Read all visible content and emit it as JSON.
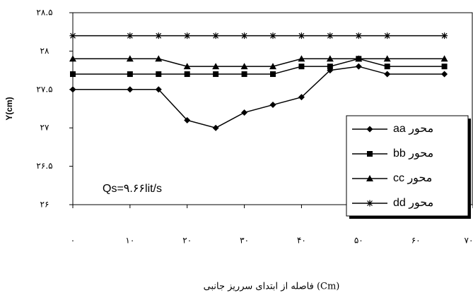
{
  "chart_data": {
    "type": "line",
    "y_label": "Y(cm)",
    "x_label": "فاصله از ابتدای سرریز جانبی (Cm)",
    "annotation": "Qs=۹.۶۶lit/s",
    "x": [
      0,
      10,
      15,
      20,
      25,
      30,
      35,
      40,
      45,
      50,
      55,
      65
    ],
    "series": [
      {
        "name": "محور aa",
        "color": "#000000",
        "marker": "diamond",
        "values": [
          27.5,
          27.5,
          27.5,
          27.1,
          27.0,
          27.2,
          27.3,
          27.4,
          27.75,
          27.8,
          27.7,
          27.7
        ]
      },
      {
        "name": "محور bb",
        "color": "#000000",
        "marker": "square",
        "values": [
          27.7,
          27.7,
          27.7,
          27.7,
          27.7,
          27.7,
          27.7,
          27.8,
          27.8,
          27.9,
          27.8,
          27.8
        ]
      },
      {
        "name": "محور cc",
        "color": "#000000",
        "marker": "triangle",
        "values": [
          27.9,
          27.9,
          27.9,
          27.8,
          27.8,
          27.8,
          27.8,
          27.9,
          27.9,
          27.9,
          27.9,
          27.9
        ]
      },
      {
        "name": "محور dd",
        "color": "#000000",
        "marker": "star",
        "values": [
          28.2,
          28.2,
          28.2,
          28.2,
          28.2,
          28.2,
          28.2,
          28.2,
          28.2,
          28.2,
          28.2,
          28.2
        ]
      }
    ],
    "xlim": [
      0,
      70
    ],
    "xticks": [
      {
        "value": 0,
        "label": "۰"
      },
      {
        "value": 10,
        "label": "۱۰"
      },
      {
        "value": 20,
        "label": "۲۰"
      },
      {
        "value": 30,
        "label": "۳۰"
      },
      {
        "value": 40,
        "label": "۴۰"
      },
      {
        "value": 50,
        "label": "۵۰"
      },
      {
        "value": 60,
        "label": "۶۰"
      },
      {
        "value": 70,
        "label": "۷۰"
      }
    ],
    "ylim": [
      26,
      28.5
    ],
    "yticks": [
      {
        "value": 26,
        "label": "۲۶"
      },
      {
        "value": 26.5,
        "label": "۲۶.۵"
      },
      {
        "value": 27,
        "label": "۲۷"
      },
      {
        "value": 27.5,
        "label": "۲۷.۵"
      },
      {
        "value": 28,
        "label": "۲۸"
      },
      {
        "value": 28.5,
        "label": "۲۸.۵"
      }
    ],
    "grid": false,
    "legend": "lower right"
  }
}
